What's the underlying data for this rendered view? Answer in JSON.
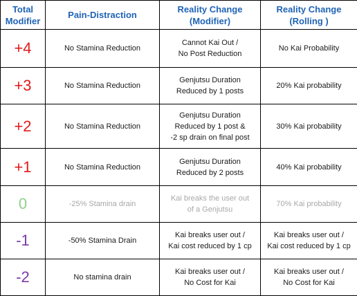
{
  "headers": [
    [
      "Total",
      "Modifier"
    ],
    [
      "Pain-Distraction"
    ],
    [
      "Reality Change",
      "(Modifier)"
    ],
    [
      "Reality Change",
      "(Rolling )"
    ]
  ],
  "colors": {
    "header_text": "#1f63b5",
    "positive_modifier": "#e11b1b",
    "zero_modifier": "#8fd18f",
    "negative_modifier": "#7a3aa7",
    "faded_text": "#a8a8a8"
  },
  "rows": [
    {
      "modifier": "+4",
      "modifier_color": "#e11b1b",
      "pain": [
        "No Stamina Reduction"
      ],
      "reality_modifier": [
        "Cannot Kai Out /",
        "No Post Reduction"
      ],
      "reality_rolling": [
        "No Kai Probability"
      ]
    },
    {
      "modifier": "+3",
      "modifier_color": "#e11b1b",
      "pain": [
        "No Stamina Reduction"
      ],
      "reality_modifier": [
        "Genjutsu Duration",
        "Reduced by 1 posts"
      ],
      "reality_rolling": [
        "20% Kai probability"
      ]
    },
    {
      "modifier": "+2",
      "modifier_color": "#e11b1b",
      "pain": [
        "No Stamina Reduction"
      ],
      "reality_modifier": [
        "Genjutsu Duration",
        "Reduced by 1 post &",
        "-2 sp drain on final post"
      ],
      "reality_rolling": [
        "30% Kai probability"
      ]
    },
    {
      "modifier": "+1",
      "modifier_color": "#e11b1b",
      "pain": [
        "No Stamina Reduction"
      ],
      "reality_modifier": [
        "Genjutsu Duration",
        "Reduced by 2 posts"
      ],
      "reality_rolling": [
        "40% Kai probability"
      ]
    },
    {
      "modifier": "0",
      "modifier_color": "#8fd18f",
      "faded": true,
      "pain": [
        "-25% Stamina drain"
      ],
      "reality_modifier": [
        "Kai breaks the user out",
        "of a Genjutsu"
      ],
      "reality_rolling": [
        "70% Kai probability"
      ]
    },
    {
      "modifier": "-1",
      "modifier_color": "#7a3aa7",
      "pain": [
        "-50% Stamina Drain"
      ],
      "reality_modifier": [
        "Kai breaks user out /",
        "Kai cost reduced by 1 cp"
      ],
      "reality_rolling": [
        "Kai breaks user out /",
        "Kai cost reduced by 1 cp"
      ]
    },
    {
      "modifier": "-2",
      "modifier_color": "#7a3aa7",
      "pain": [
        "No stamina drain"
      ],
      "reality_modifier": [
        "Kai breaks user out /",
        "No Cost for Kai"
      ],
      "reality_rolling": [
        "Kai breaks user out /",
        "No Cost for Kai"
      ]
    }
  ]
}
